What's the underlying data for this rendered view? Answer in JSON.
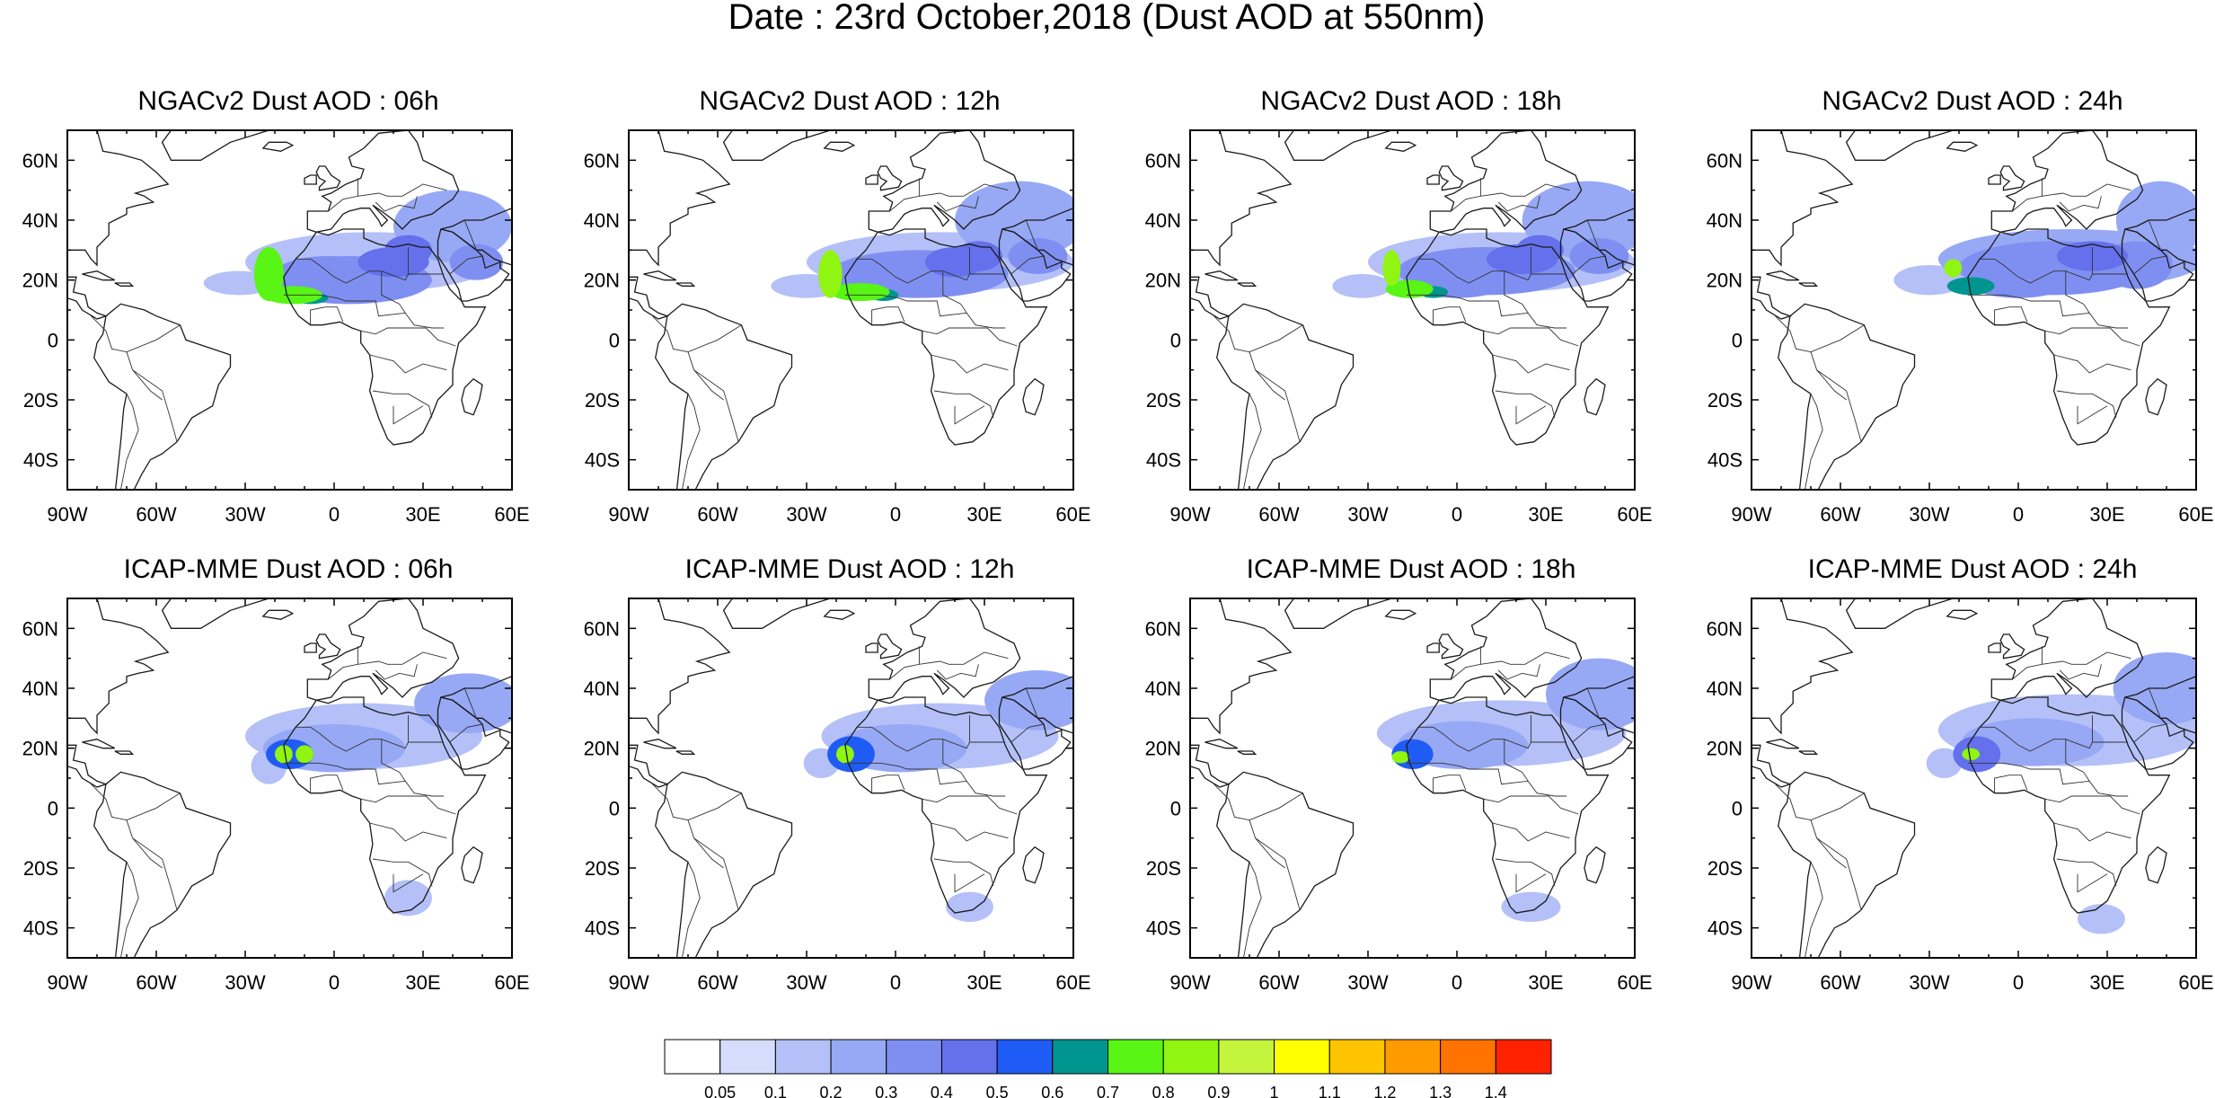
{
  "figure": {
    "title": "Date : 23rd October,2018 (Dust AOD at 550nm)"
  },
  "panels": [
    {
      "title": "NGACv2 Dust AOD : 06h"
    },
    {
      "title": "NGACv2 Dust AOD : 12h"
    },
    {
      "title": "NGACv2 Dust AOD : 18h"
    },
    {
      "title": "NGACv2 Dust AOD : 24h"
    },
    {
      "title": "ICAP-MME Dust AOD : 06h"
    },
    {
      "title": "ICAP-MME Dust AOD : 12h"
    },
    {
      "title": "ICAP-MME Dust AOD : 18h"
    },
    {
      "title": "ICAP-MME Dust AOD : 24h"
    }
  ],
  "axes": {
    "lat_labels": [
      "60N",
      "40N",
      "20N",
      "0",
      "20S",
      "40S"
    ],
    "lon_labels": [
      "90W",
      "60W",
      "30W",
      "0",
      "30E",
      "60E"
    ]
  },
  "colorbar": {
    "labels": [
      "0.05",
      "0.1",
      "0.2",
      "0.3",
      "0.4",
      "0.5",
      "0.6",
      "0.7",
      "0.8",
      "0.9",
      "1",
      "1.1",
      "1.2",
      "1.3",
      "1.4"
    ],
    "colors": [
      "#ffffff",
      "#d6dcfb",
      "#b4c0f7",
      "#97a8f5",
      "#7f8ff1",
      "#6570ec",
      "#1f5cf5",
      "#00968f",
      "#58f515",
      "#8ff511",
      "#c4f53c",
      "#ffff00",
      "#ffc400",
      "#ff9a00",
      "#ff7300",
      "#ff2200"
    ]
  },
  "colors": {
    "land_outline": "#1a1a1a",
    "background": "#ffffff"
  }
}
